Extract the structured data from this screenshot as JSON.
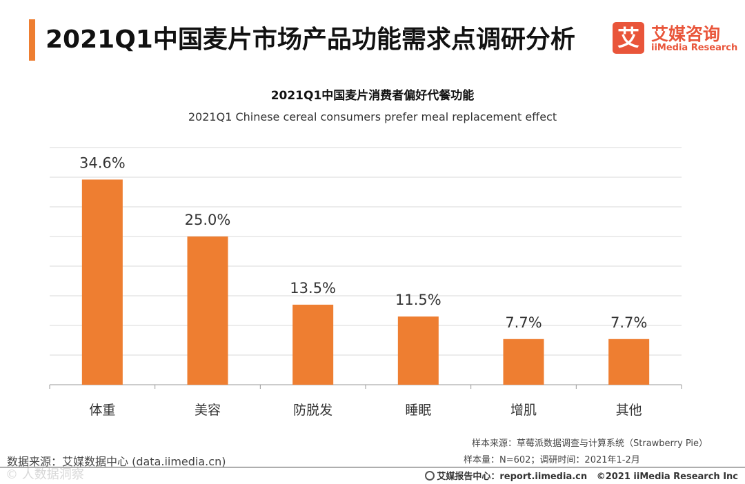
{
  "header": {
    "title": "2021Q1中国麦片市场产品功能需求点调研分析",
    "logo_mark": "艾",
    "logo_cn": "艾媒咨询",
    "logo_en": "iiMedia Research"
  },
  "chart_data": {
    "type": "bar",
    "title": "2021Q1中国麦片消费者偏好代餐功能",
    "subtitle": "2021Q1 Chinese cereal consumers prefer meal replacement effect",
    "categories": [
      "体重",
      "美容",
      "防脱发",
      "睡眠",
      "增肌",
      "其他"
    ],
    "values": [
      34.6,
      25.0,
      13.5,
      11.5,
      7.7,
      7.7
    ],
    "value_labels": [
      "34.6%",
      "25.0%",
      "13.5%",
      "11.5%",
      "7.7%",
      "7.7%"
    ],
    "ylim": [
      0,
      40
    ],
    "grid": true,
    "bar_color": "#EE7E31",
    "xlabel": "",
    "ylabel": ""
  },
  "notes": {
    "sample_source": "样本来源：草莓派数据调查与计算系统（Strawberry Pie）",
    "sample_size": "样本量：N=602；调研时间：2021年1-2月"
  },
  "source": "数据来源：艾媒数据中心 (data.iimedia.cn)",
  "footer": {
    "center": "艾媒报告中心：report.iimedia.cn",
    "copyright": "©2021  iiMedia Research  Inc"
  },
  "watermark": "©  人数据洞察"
}
